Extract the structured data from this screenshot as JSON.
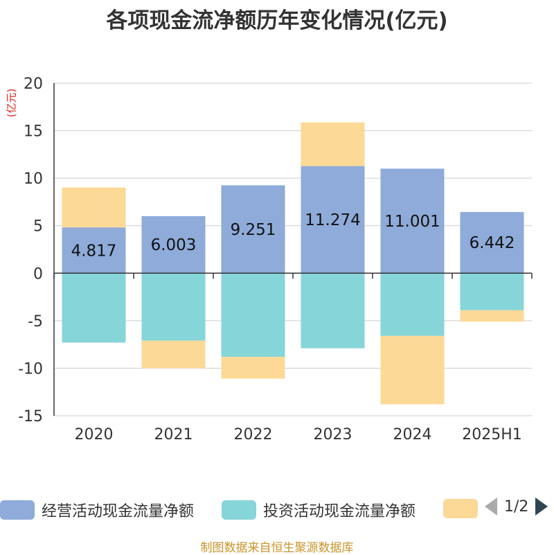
{
  "title": "各项现金流净额历年变化情况(亿元)",
  "unit_label": "(亿元)",
  "source": "制图数据来自恒生聚源数据库",
  "legend": {
    "items": [
      {
        "label": "经营活动现金流量净额",
        "color": "#8eabd9"
      },
      {
        "label": "投资活动现金流量净额",
        "color": "#86d5d8"
      },
      {
        "label": "",
        "color": "#fcd997"
      }
    ],
    "page_text": "1/2"
  },
  "chart_data": {
    "type": "bar",
    "stacked": true,
    "categories": [
      "2020",
      "2021",
      "2022",
      "2023",
      "2024",
      "2025H1"
    ],
    "ylim": [
      -15,
      20
    ],
    "yticks": [
      -15,
      -10,
      -5,
      0,
      5,
      10,
      15,
      20
    ],
    "grid": true,
    "series": [
      {
        "name": "经营活动现金流量净额",
        "color": "#8eabd9",
        "values": [
          4.817,
          6.003,
          9.251,
          11.274,
          11.001,
          6.442
        ],
        "labels": [
          "4.817",
          "6.003",
          "9.251",
          "11.274",
          "11.001",
          "6.442"
        ]
      },
      {
        "name": "投资活动现金流量净额",
        "color": "#86d5d8",
        "values": [
          -7.3,
          -7.1,
          -8.8,
          -7.9,
          -6.6,
          -3.9
        ]
      },
      {
        "color": "#fcd997",
        "values": [
          4.2,
          -2.9,
          -2.3,
          4.6,
          -7.2,
          -1.2
        ]
      }
    ]
  }
}
